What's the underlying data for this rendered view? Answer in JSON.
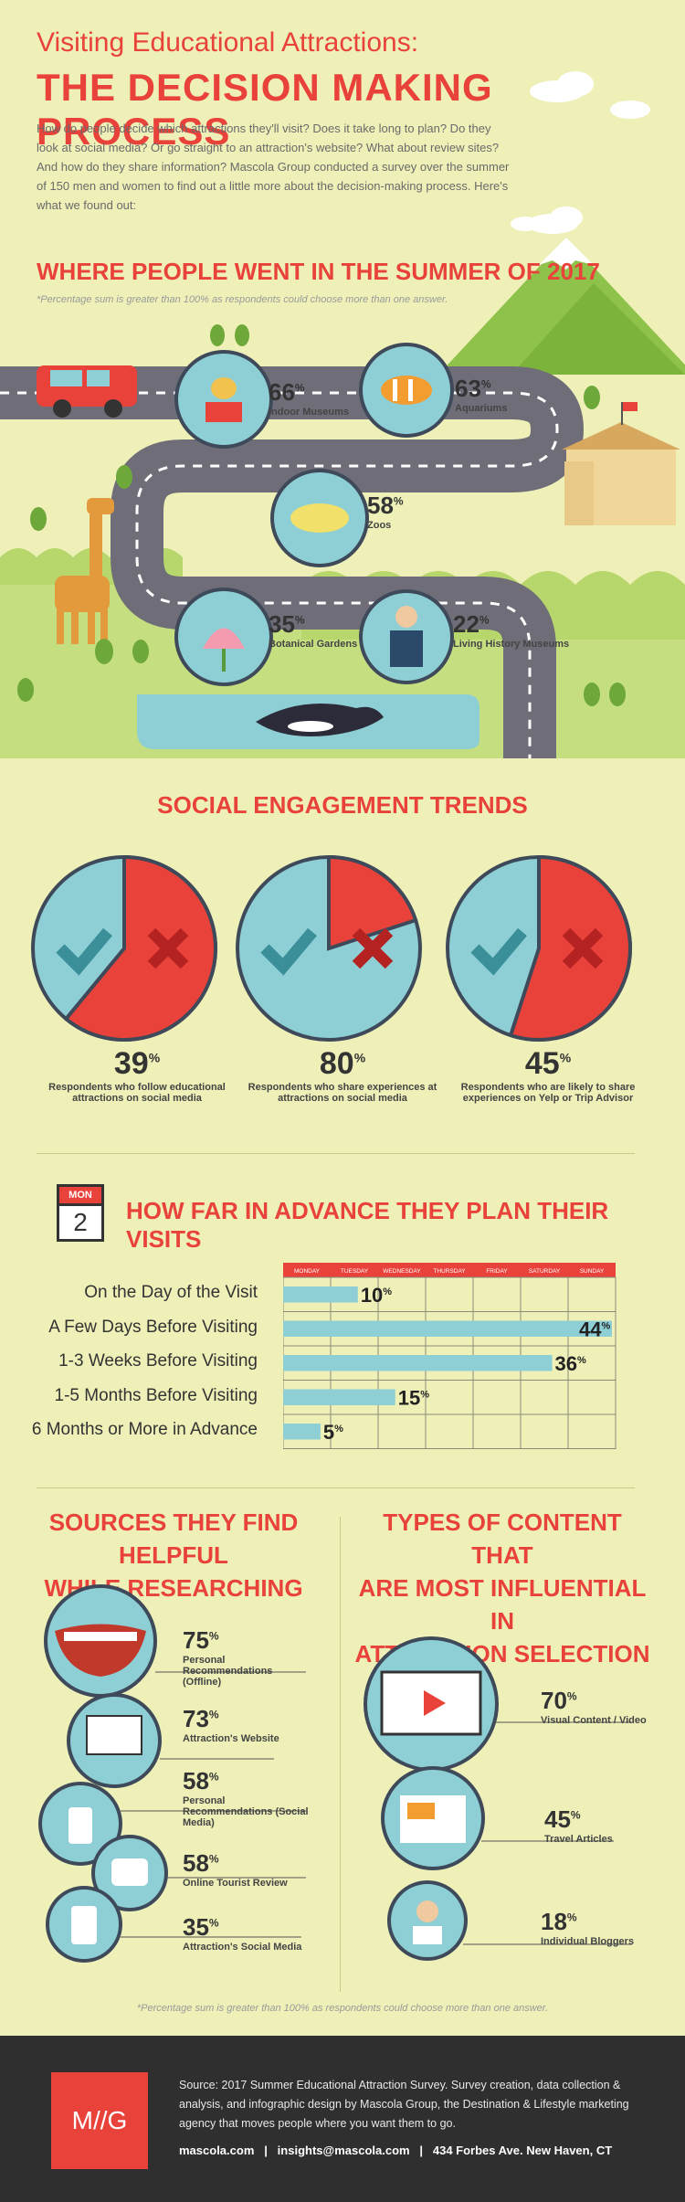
{
  "header": {
    "kicker": "Visiting Educational Attractions:",
    "title": "THE DECISION MAKING PROCESS",
    "intro": "How do people decide which attractions they'll visit? Does it take long to plan? Do they look at social media? Or go straight to an attraction's website? What about review sites? And how do they share information? Mascola Group conducted a survey over the summer of 150 men and women to find out a little more about the decision-making process. Here's what we found out:"
  },
  "where": {
    "title": "WHERE PEOPLE WENT IN THE SUMMER OF 2017",
    "note": "*Percentage sum is greater than 100% as respondents could choose more than one answer.",
    "items": [
      {
        "pct": "66",
        "label": "Indoor Museums"
      },
      {
        "pct": "63",
        "label": "Aquariums"
      },
      {
        "pct": "58",
        "label": "Zoos"
      },
      {
        "pct": "35",
        "label": "Botanical Gardens"
      },
      {
        "pct": "22",
        "label": "Living History Museums"
      }
    ]
  },
  "social": {
    "title": "SOCIAL ENGAGEMENT TRENDS",
    "items": [
      {
        "pct": "39",
        "value": 39,
        "label": "Respondents who follow educational attractions on social media"
      },
      {
        "pct": "80",
        "value": 80,
        "label": "Respondents who share experiences at attractions on social media"
      },
      {
        "pct": "45",
        "value": 45,
        "label": "Respondents who are likely to share experiences on Yelp or Trip Advisor"
      }
    ]
  },
  "plan": {
    "title": "HOW FAR IN ADVANCE THEY PLAN THEIR VISITS",
    "calendar_icon_month": "MON",
    "calendar_icon_day": "2",
    "days": [
      "MONDAY",
      "TUESDAY",
      "WEDNESDAY",
      "THURSDAY",
      "FRIDAY",
      "SATURDAY",
      "SUNDAY"
    ],
    "rows": [
      {
        "label": "On the Day of the Visit",
        "pct": "10",
        "value": 10
      },
      {
        "label": "A Few Days Before Visiting",
        "pct": "44",
        "value": 44
      },
      {
        "label": "1-3 Weeks Before Visiting",
        "pct": "36",
        "value": 36
      },
      {
        "label": "1-5 Months Before Visiting",
        "pct": "15",
        "value": 15
      },
      {
        "label": "6 Months or More in Advance",
        "pct": "5",
        "value": 5
      }
    ]
  },
  "sources": {
    "title_line1": "SOURCES THEY FIND HELPFUL",
    "title_line2": "WHILE RESEARCHING",
    "items": [
      {
        "pct": "75",
        "label": "Personal Recommendations (Offline)"
      },
      {
        "pct": "73",
        "label": "Attraction's Website"
      },
      {
        "pct": "58",
        "label": "Personal Recommendations (Social Media)"
      },
      {
        "pct": "58",
        "label": "Online Tourist Review"
      },
      {
        "pct": "35",
        "label": "Attraction's Social Media"
      }
    ]
  },
  "content": {
    "title_line1": "TYPES OF CONTENT THAT",
    "title_line2": "ARE MOST INFLUENTIAL IN",
    "title_line3": "ATTRACTION SELECTION",
    "items": [
      {
        "pct": "70",
        "label": "Visual Content / Video"
      },
      {
        "pct": "45",
        "label": "Travel Articles"
      },
      {
        "pct": "18",
        "label": "Individual Bloggers"
      }
    ]
  },
  "bottom_note": "*Percentage sum is greater than 100% as respondents could choose more than one answer.",
  "footer": {
    "logo": "M//G",
    "source": "Source: 2017 Summer Educational Attraction Survey. Survey creation, data collection & analysis, and infographic design by Mascola Group, the Destination & Lifestyle marketing agency that moves people where you want them to go.",
    "links": "mascola.com   |   insights@mascola.com   |   434 Forbes Ave. New Haven, CT"
  },
  "colors": {
    "red": "#e8423a",
    "teal": "#8ecfd6",
    "dark_teal": "#3a8f99",
    "road": "#6f6e78",
    "bg": "#eef0b8",
    "green": "#8fc24a"
  }
}
